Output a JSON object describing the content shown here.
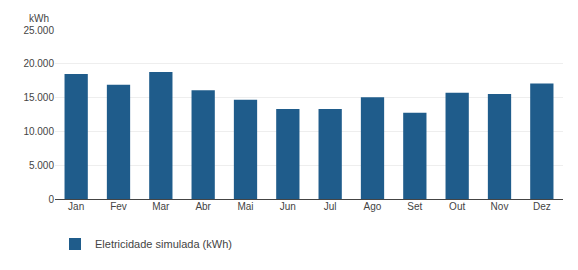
{
  "chart_data": {
    "type": "bar",
    "categories": [
      "Jan",
      "Fev",
      "Mar",
      "Abr",
      "Mai",
      "Jun",
      "Jul",
      "Ago",
      "Set",
      "Out",
      "Nov",
      "Dez"
    ],
    "series": [
      {
        "name": "Eletricidade simulada (kWh)",
        "color": "#1F5C8B",
        "values": [
          18500,
          16900,
          18800,
          16100,
          14700,
          13300,
          13300,
          15050,
          12750,
          15700,
          15550,
          17100
        ]
      }
    ],
    "ylabel": "kWh",
    "ylim": [
      0,
      25000
    ],
    "yticks": [
      0,
      {
        "value": 5000,
        "label": "5.000"
      },
      {
        "value": 10000,
        "label": "10.000"
      },
      {
        "value": 15000,
        "label": "15.000"
      },
      {
        "value": 20000,
        "label": "20.000"
      },
      {
        "value": 25000,
        "label": "25.000"
      }
    ],
    "grid": true,
    "legend": "bottom"
  }
}
